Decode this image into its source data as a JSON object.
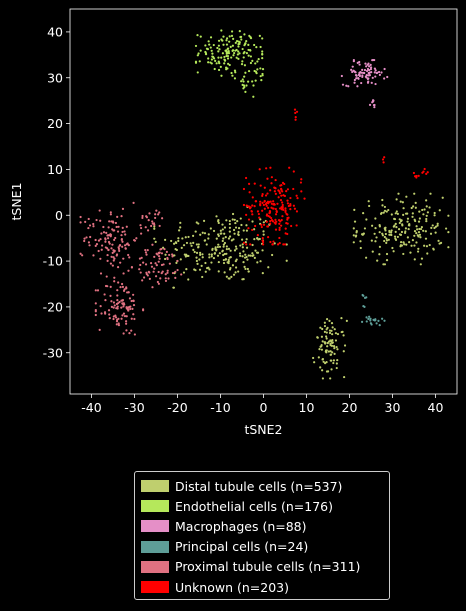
{
  "chart_data": {
    "type": "scatter",
    "xlabel": "tSNE2",
    "ylabel": "tSNE1",
    "xlim": [
      -45,
      45
    ],
    "ylim": [
      -39,
      45
    ],
    "xticks": [
      "-40",
      "-30",
      "-20",
      "-10",
      "0",
      "10",
      "20",
      "30",
      "40"
    ],
    "yticks": [
      "-30",
      "-20",
      "-10",
      "0",
      "10",
      "20",
      "30",
      "40"
    ],
    "grid": false,
    "legend_position": "below",
    "series": [
      {
        "name": "Distal tubule cells (n=537)",
        "color": "#bfcf6e",
        "clusters": [
          {
            "cx": -10,
            "cy": -7,
            "sx": 7,
            "sy": 4,
            "n": 230
          },
          {
            "cx": 32,
            "cy": -3,
            "sx": 5,
            "sy": 3.5,
            "n": 200
          },
          {
            "cx": 15.5,
            "cy": -29,
            "sx": 1.8,
            "sy": 3,
            "n": 90
          },
          {
            "cx": -4,
            "cy": -8,
            "sx": 3,
            "sy": 3,
            "n": 17
          }
        ]
      },
      {
        "name": "Endothelial cells (n=176)",
        "color": "#b5e85b",
        "clusters": [
          {
            "cx": -8,
            "cy": 35.5,
            "sx": 3.5,
            "sy": 2.3,
            "n": 150
          },
          {
            "cx": -4,
            "cy": 28.5,
            "sx": 1.2,
            "sy": 1.2,
            "n": 16
          },
          {
            "cx": -1,
            "cy": 31,
            "sx": 1,
            "sy": 1,
            "n": 10
          }
        ]
      },
      {
        "name": "Macrophages (n=88)",
        "color": "#e58fc7",
        "clusters": [
          {
            "cx": 23.5,
            "cy": 31,
            "sx": 2.4,
            "sy": 1.3,
            "n": 80
          },
          {
            "cx": 25.5,
            "cy": 24,
            "sx": 0.5,
            "sy": 0.8,
            "n": 8
          }
        ]
      },
      {
        "name": "Principal cells (n=24)",
        "color": "#5e9e98",
        "clusters": [
          {
            "cx": 25.5,
            "cy": -23,
            "sx": 1.2,
            "sy": 0.6,
            "n": 18
          },
          {
            "cx": 23.5,
            "cy": -19,
            "sx": 0.4,
            "sy": 0.9,
            "n": 6
          }
        ]
      },
      {
        "name": "Proximal tubule cells (n=311)",
        "color": "#e07181",
        "clusters": [
          {
            "cx": -35.5,
            "cy": -5,
            "sx": 3.2,
            "sy": 3.5,
            "n": 120
          },
          {
            "cx": -33.5,
            "cy": -20,
            "sx": 2.5,
            "sy": 3.2,
            "n": 100
          },
          {
            "cx": -24,
            "cy": -11,
            "sx": 3,
            "sy": 2.2,
            "n": 70
          },
          {
            "cx": -26,
            "cy": -1,
            "sx": 1.5,
            "sy": 1.2,
            "n": 21
          }
        ]
      },
      {
        "name": "Unknown (n=203)",
        "color": "#ff0000",
        "clusters": [
          {
            "cx": 2.5,
            "cy": 2,
            "sx": 3.2,
            "sy": 3.8,
            "n": 185
          },
          {
            "cx": 7.5,
            "cy": 22,
            "sx": 0.3,
            "sy": 0.8,
            "n": 5
          },
          {
            "cx": 35,
            "cy": 8.5,
            "sx": 0.6,
            "sy": 0.4,
            "n": 5
          },
          {
            "cx": 37.5,
            "cy": 9.5,
            "sx": 0.5,
            "sy": 0.6,
            "n": 5
          },
          {
            "cx": 28,
            "cy": 12,
            "sx": 0.3,
            "sy": 0.3,
            "n": 3
          }
        ]
      }
    ]
  }
}
